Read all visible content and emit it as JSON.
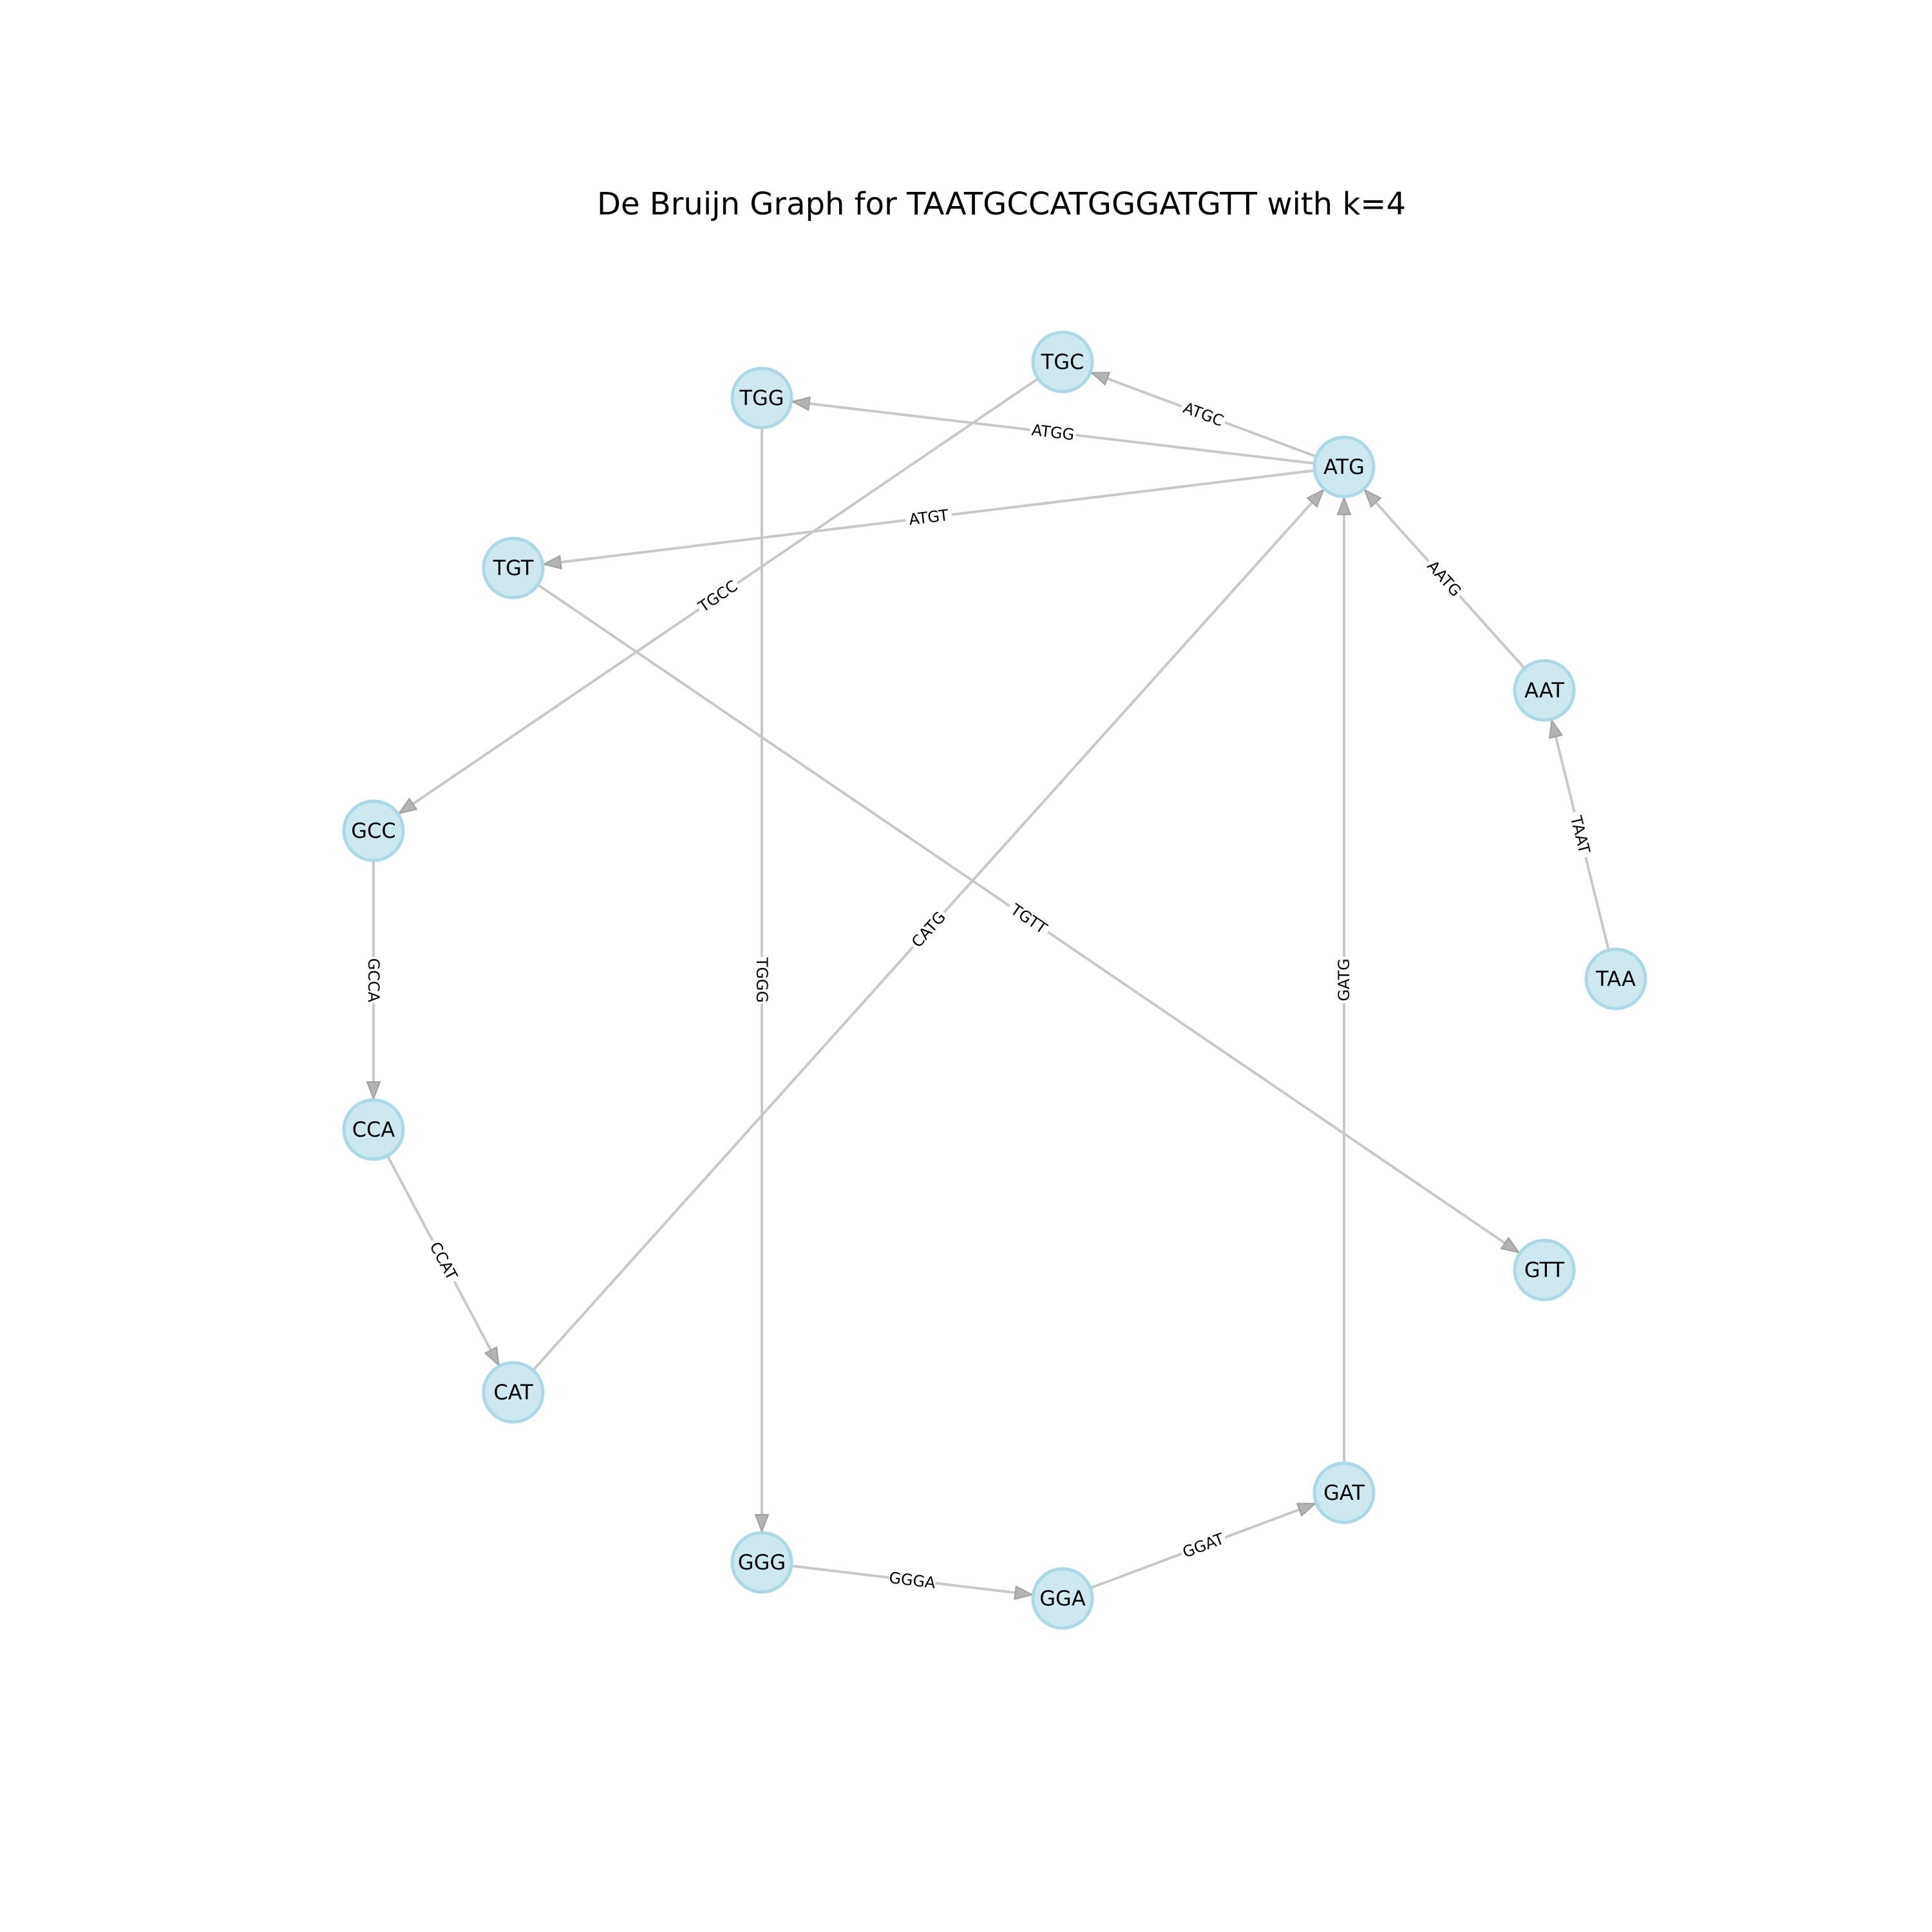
{
  "title": "De Bruijn Graph for TAATGCCATGGGATGTT with k=4",
  "colors": {
    "node_fill": "#add8e6",
    "edge": "#c0c0c0",
    "text": "#000000",
    "background": "#ffffff"
  },
  "nodes": [
    "TAA",
    "AAT",
    "ATG",
    "TGC",
    "TGG",
    "TGT",
    "GCC",
    "CCA",
    "CAT",
    "GGG",
    "GGA",
    "GAT",
    "GTT"
  ],
  "edges": [
    {
      "source": "TAA",
      "target": "AAT",
      "label": "TAAT"
    },
    {
      "source": "AAT",
      "target": "ATG",
      "label": "AATG"
    },
    {
      "source": "ATG",
      "target": "TGC",
      "label": "ATGC"
    },
    {
      "source": "ATG",
      "target": "TGG",
      "label": "ATGG"
    },
    {
      "source": "ATG",
      "target": "TGT",
      "label": "ATGT"
    },
    {
      "source": "TGC",
      "target": "GCC",
      "label": "TGCC"
    },
    {
      "source": "GCC",
      "target": "CCA",
      "label": "GCCA"
    },
    {
      "source": "CCA",
      "target": "CAT",
      "label": "CCAT"
    },
    {
      "source": "CAT",
      "target": "ATG",
      "label": "CATG"
    },
    {
      "source": "TGG",
      "target": "GGG",
      "label": "TGGG"
    },
    {
      "source": "GGG",
      "target": "GGA",
      "label": "GGGA"
    },
    {
      "source": "GGA",
      "target": "GAT",
      "label": "GGAT"
    },
    {
      "source": "GAT",
      "target": "ATG",
      "label": "GATG"
    },
    {
      "source": "TGT",
      "target": "GTT",
      "label": "TGTT"
    }
  ]
}
